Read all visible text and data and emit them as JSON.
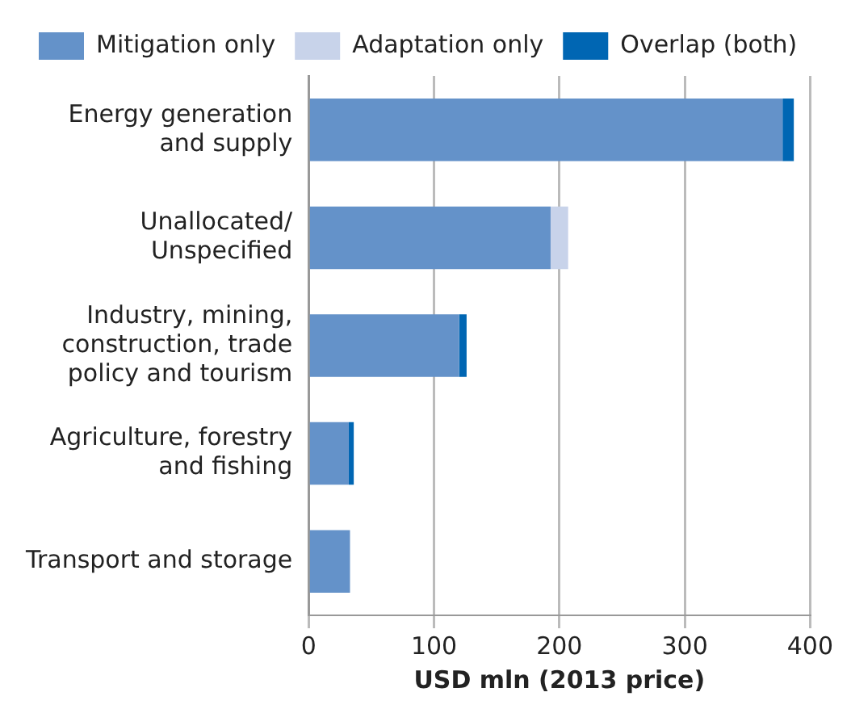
{
  "chart_data": {
    "type": "bar",
    "orientation": "horizontal",
    "stacked": true,
    "xlabel": "USD mln (2013 price)",
    "categories": [
      "Energy generation\nand supply",
      "Unallocated/\nUnspecified",
      "Industry, mining,\nconstruction, trade\npolicy and tourism",
      "Agriculture, forestry\nand fishing",
      "Transport and storage"
    ],
    "series": [
      {
        "name": "Mitigation only",
        "color": "#6492c9",
        "values": [
          378,
          193,
          120,
          32,
          33
        ]
      },
      {
        "name": "Adaptation only",
        "color": "#c8d3ea",
        "values": [
          null,
          14,
          null,
          null,
          null
        ]
      },
      {
        "name": "Overlap (both)",
        "color": "#0066b3",
        "values": [
          9,
          null,
          6,
          4,
          null
        ]
      }
    ],
    "xlim": [
      0,
      400
    ],
    "xticks": [
      0,
      100,
      200,
      300,
      400
    ],
    "grid": "x",
    "legend": "top"
  }
}
